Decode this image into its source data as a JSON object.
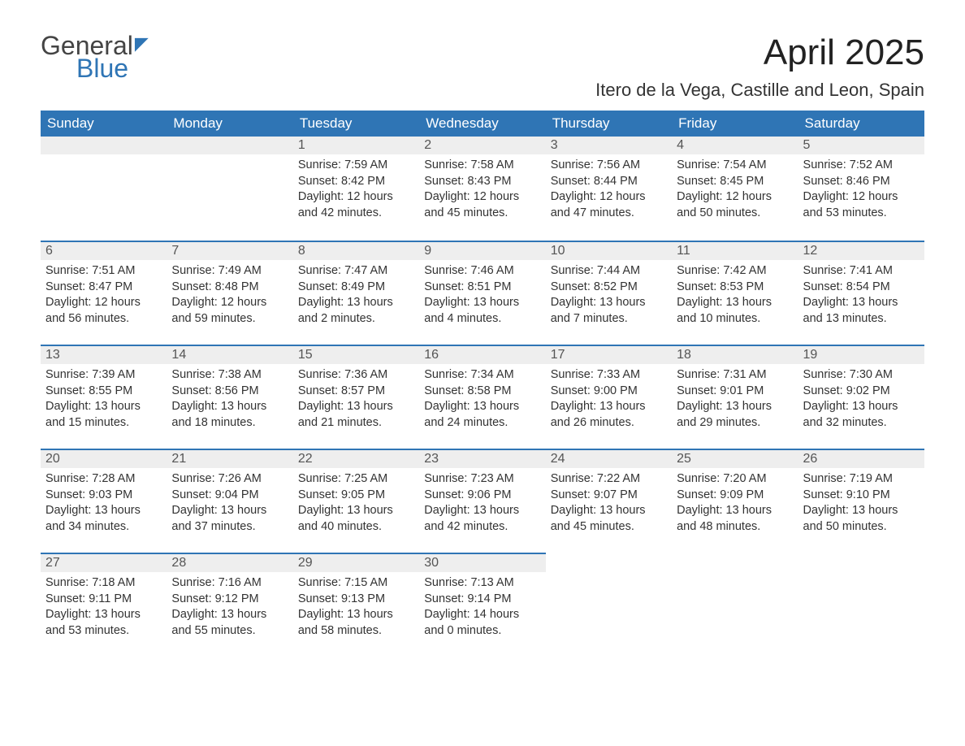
{
  "logo": {
    "general": "General",
    "blue": "Blue"
  },
  "title": "April 2025",
  "location": "Itero de la Vega, Castille and Leon, Spain",
  "columns": [
    "Sunday",
    "Monday",
    "Tuesday",
    "Wednesday",
    "Thursday",
    "Friday",
    "Saturday"
  ],
  "colors": {
    "header_bg": "#2f75b5",
    "header_text": "#ffffff",
    "daynum_bg": "#eeeeee",
    "daynum_border": "#2f75b5",
    "text": "#333333",
    "logo_blue": "#2f75b5",
    "background": "#ffffff"
  },
  "fonts": {
    "title_size": 44,
    "location_size": 22,
    "header_size": 17,
    "daynum_size": 16,
    "content_size": 14.5
  },
  "weeks": [
    [
      {
        "day": "",
        "sunrise": "",
        "sunset": "",
        "daylight": ""
      },
      {
        "day": "",
        "sunrise": "",
        "sunset": "",
        "daylight": ""
      },
      {
        "day": "1",
        "sunrise": "Sunrise: 7:59 AM",
        "sunset": "Sunset: 8:42 PM",
        "daylight": "Daylight: 12 hours and 42 minutes."
      },
      {
        "day": "2",
        "sunrise": "Sunrise: 7:58 AM",
        "sunset": "Sunset: 8:43 PM",
        "daylight": "Daylight: 12 hours and 45 minutes."
      },
      {
        "day": "3",
        "sunrise": "Sunrise: 7:56 AM",
        "sunset": "Sunset: 8:44 PM",
        "daylight": "Daylight: 12 hours and 47 minutes."
      },
      {
        "day": "4",
        "sunrise": "Sunrise: 7:54 AM",
        "sunset": "Sunset: 8:45 PM",
        "daylight": "Daylight: 12 hours and 50 minutes."
      },
      {
        "day": "5",
        "sunrise": "Sunrise: 7:52 AM",
        "sunset": "Sunset: 8:46 PM",
        "daylight": "Daylight: 12 hours and 53 minutes."
      }
    ],
    [
      {
        "day": "6",
        "sunrise": "Sunrise: 7:51 AM",
        "sunset": "Sunset: 8:47 PM",
        "daylight": "Daylight: 12 hours and 56 minutes."
      },
      {
        "day": "7",
        "sunrise": "Sunrise: 7:49 AM",
        "sunset": "Sunset: 8:48 PM",
        "daylight": "Daylight: 12 hours and 59 minutes."
      },
      {
        "day": "8",
        "sunrise": "Sunrise: 7:47 AM",
        "sunset": "Sunset: 8:49 PM",
        "daylight": "Daylight: 13 hours and 2 minutes."
      },
      {
        "day": "9",
        "sunrise": "Sunrise: 7:46 AM",
        "sunset": "Sunset: 8:51 PM",
        "daylight": "Daylight: 13 hours and 4 minutes."
      },
      {
        "day": "10",
        "sunrise": "Sunrise: 7:44 AM",
        "sunset": "Sunset: 8:52 PM",
        "daylight": "Daylight: 13 hours and 7 minutes."
      },
      {
        "day": "11",
        "sunrise": "Sunrise: 7:42 AM",
        "sunset": "Sunset: 8:53 PM",
        "daylight": "Daylight: 13 hours and 10 minutes."
      },
      {
        "day": "12",
        "sunrise": "Sunrise: 7:41 AM",
        "sunset": "Sunset: 8:54 PM",
        "daylight": "Daylight: 13 hours and 13 minutes."
      }
    ],
    [
      {
        "day": "13",
        "sunrise": "Sunrise: 7:39 AM",
        "sunset": "Sunset: 8:55 PM",
        "daylight": "Daylight: 13 hours and 15 minutes."
      },
      {
        "day": "14",
        "sunrise": "Sunrise: 7:38 AM",
        "sunset": "Sunset: 8:56 PM",
        "daylight": "Daylight: 13 hours and 18 minutes."
      },
      {
        "day": "15",
        "sunrise": "Sunrise: 7:36 AM",
        "sunset": "Sunset: 8:57 PM",
        "daylight": "Daylight: 13 hours and 21 minutes."
      },
      {
        "day": "16",
        "sunrise": "Sunrise: 7:34 AM",
        "sunset": "Sunset: 8:58 PM",
        "daylight": "Daylight: 13 hours and 24 minutes."
      },
      {
        "day": "17",
        "sunrise": "Sunrise: 7:33 AM",
        "sunset": "Sunset: 9:00 PM",
        "daylight": "Daylight: 13 hours and 26 minutes."
      },
      {
        "day": "18",
        "sunrise": "Sunrise: 7:31 AM",
        "sunset": "Sunset: 9:01 PM",
        "daylight": "Daylight: 13 hours and 29 minutes."
      },
      {
        "day": "19",
        "sunrise": "Sunrise: 7:30 AM",
        "sunset": "Sunset: 9:02 PM",
        "daylight": "Daylight: 13 hours and 32 minutes."
      }
    ],
    [
      {
        "day": "20",
        "sunrise": "Sunrise: 7:28 AM",
        "sunset": "Sunset: 9:03 PM",
        "daylight": "Daylight: 13 hours and 34 minutes."
      },
      {
        "day": "21",
        "sunrise": "Sunrise: 7:26 AM",
        "sunset": "Sunset: 9:04 PM",
        "daylight": "Daylight: 13 hours and 37 minutes."
      },
      {
        "day": "22",
        "sunrise": "Sunrise: 7:25 AM",
        "sunset": "Sunset: 9:05 PM",
        "daylight": "Daylight: 13 hours and 40 minutes."
      },
      {
        "day": "23",
        "sunrise": "Sunrise: 7:23 AM",
        "sunset": "Sunset: 9:06 PM",
        "daylight": "Daylight: 13 hours and 42 minutes."
      },
      {
        "day": "24",
        "sunrise": "Sunrise: 7:22 AM",
        "sunset": "Sunset: 9:07 PM",
        "daylight": "Daylight: 13 hours and 45 minutes."
      },
      {
        "day": "25",
        "sunrise": "Sunrise: 7:20 AM",
        "sunset": "Sunset: 9:09 PM",
        "daylight": "Daylight: 13 hours and 48 minutes."
      },
      {
        "day": "26",
        "sunrise": "Sunrise: 7:19 AM",
        "sunset": "Sunset: 9:10 PM",
        "daylight": "Daylight: 13 hours and 50 minutes."
      }
    ],
    [
      {
        "day": "27",
        "sunrise": "Sunrise: 7:18 AM",
        "sunset": "Sunset: 9:11 PM",
        "daylight": "Daylight: 13 hours and 53 minutes."
      },
      {
        "day": "28",
        "sunrise": "Sunrise: 7:16 AM",
        "sunset": "Sunset: 9:12 PM",
        "daylight": "Daylight: 13 hours and 55 minutes."
      },
      {
        "day": "29",
        "sunrise": "Sunrise: 7:15 AM",
        "sunset": "Sunset: 9:13 PM",
        "daylight": "Daylight: 13 hours and 58 minutes."
      },
      {
        "day": "30",
        "sunrise": "Sunrise: 7:13 AM",
        "sunset": "Sunset: 9:14 PM",
        "daylight": "Daylight: 14 hours and 0 minutes."
      },
      {
        "day": "",
        "sunrise": "",
        "sunset": "",
        "daylight": ""
      },
      {
        "day": "",
        "sunrise": "",
        "sunset": "",
        "daylight": ""
      },
      {
        "day": "",
        "sunrise": "",
        "sunset": "",
        "daylight": ""
      }
    ]
  ]
}
